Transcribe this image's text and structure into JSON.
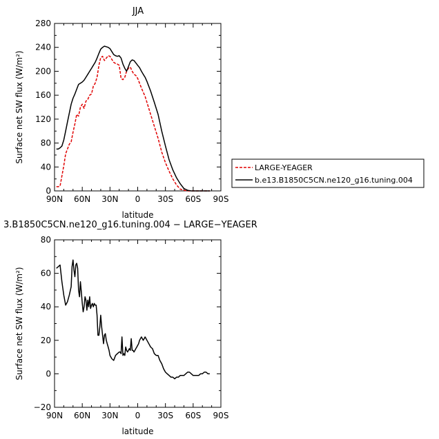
{
  "chart_data": [
    {
      "type": "line",
      "title": "JJA",
      "xlabel": "latitude",
      "ylabel": "Surface net SW flux (W/m²)",
      "xlim": [
        90,
        -90
      ],
      "ylim": [
        0,
        280
      ],
      "xticks": [
        90,
        60,
        30,
        0,
        -30,
        -60,
        -90
      ],
      "xtick_labels": [
        "90N",
        "60N",
        "30N",
        "0",
        "30S",
        "60S",
        "90S"
      ],
      "yticks": [
        0,
        40,
        80,
        120,
        160,
        200,
        240,
        280
      ],
      "ytick_labels": [
        "0",
        "40",
        "80",
        "120",
        "160",
        "200",
        "240",
        "280"
      ],
      "legend_position": "right",
      "series": [
        {
          "name": "LARGE-YEAGER",
          "color": "#e00000",
          "dash": "dashed",
          "x": [
            88,
            86,
            84,
            82,
            80,
            78,
            76,
            74,
            72,
            70,
            68,
            66,
            64,
            62,
            60,
            58,
            56,
            54,
            52,
            50,
            48,
            46,
            44,
            42,
            40,
            38,
            36,
            34,
            32,
            30,
            28,
            26,
            24,
            22,
            20,
            18,
            16,
            14,
            12,
            10,
            8,
            6,
            4,
            2,
            0,
            -2,
            -4,
            -6,
            -8,
            -10,
            -14,
            -18,
            -22,
            -26,
            -30,
            -34,
            -38,
            -42,
            -46,
            -50,
            -54,
            -58,
            -62,
            -66,
            -70,
            -74,
            -78
          ],
          "values": [
            7,
            7,
            8,
            25,
            42,
            62,
            70,
            78,
            82,
            98,
            112,
            128,
            125,
            140,
            145,
            138,
            150,
            153,
            160,
            162,
            175,
            180,
            190,
            210,
            223,
            225,
            218,
            222,
            226,
            225,
            220,
            215,
            213,
            212,
            210,
            188,
            186,
            190,
            200,
            205,
            207,
            200,
            195,
            193,
            188,
            180,
            172,
            165,
            158,
            148,
            128,
            108,
            88,
            65,
            47,
            33,
            20,
            10,
            3,
            1,
            0,
            0,
            0,
            0,
            0,
            0,
            0
          ]
        },
        {
          "name": "b.e13.B1850C5CN.ne120_g16.tuning.004",
          "color": "#000000",
          "dash": "solid",
          "x": [
            88,
            86,
            84,
            82,
            80,
            78,
            76,
            74,
            72,
            70,
            68,
            66,
            64,
            62,
            60,
            58,
            56,
            54,
            52,
            50,
            48,
            46,
            44,
            42,
            40,
            38,
            36,
            34,
            32,
            30,
            28,
            26,
            24,
            22,
            20,
            18,
            16,
            14,
            12,
            10,
            8,
            6,
            4,
            2,
            0,
            -2,
            -4,
            -6,
            -8,
            -10,
            -14,
            -18,
            -22,
            -26,
            -30,
            -34,
            -38,
            -42,
            -46,
            -50,
            -54,
            -58,
            -62,
            -66,
            -70,
            -74,
            -78
          ],
          "values": [
            70,
            70,
            72,
            75,
            85,
            100,
            115,
            130,
            145,
            155,
            162,
            170,
            178,
            180,
            182,
            185,
            190,
            195,
            200,
            205,
            210,
            215,
            222,
            230,
            237,
            240,
            242,
            241,
            240,
            238,
            233,
            228,
            226,
            225,
            226,
            222,
            212,
            205,
            200,
            208,
            216,
            219,
            218,
            214,
            210,
            206,
            200,
            195,
            190,
            183,
            167,
            148,
            128,
            100,
            75,
            52,
            35,
            22,
            12,
            4,
            1,
            0,
            0,
            0,
            0,
            0,
            0
          ]
        }
      ]
    },
    {
      "type": "line",
      "title": "3.B1850C5CN.ne120_g16.tuning.004 − LARGE−YEAGER",
      "xlabel": "latitude",
      "ylabel": "Surface net SW flux (W/m²)",
      "xlim": [
        90,
        -90
      ],
      "ylim": [
        -20,
        80
      ],
      "xticks": [
        90,
        60,
        30,
        0,
        -30,
        -60,
        -90
      ],
      "xtick_labels": [
        "90N",
        "60N",
        "30N",
        "0",
        "30S",
        "60S",
        "90S"
      ],
      "yticks": [
        -20,
        0,
        20,
        40,
        60,
        80
      ],
      "ytick_labels": [
        "−20",
        "0",
        "20",
        "40",
        "60",
        "80"
      ],
      "series": [
        {
          "color": "#000000",
          "dash": "solid",
          "x": [
            88,
            86,
            84,
            82,
            80,
            78,
            76,
            74,
            72,
            71,
            70,
            69,
            68,
            67,
            66,
            65,
            64,
            63,
            62,
            61,
            60,
            59,
            58,
            57,
            56,
            55,
            54,
            53,
            52,
            51,
            50,
            49,
            48,
            47,
            46,
            45,
            44,
            43,
            42,
            41,
            40,
            39,
            38,
            37,
            36,
            35,
            34,
            33,
            32,
            31,
            30,
            28,
            26,
            24,
            22,
            20,
            19,
            18,
            17,
            16,
            15,
            14,
            13,
            12,
            11,
            10,
            9,
            8,
            7,
            6,
            5,
            4,
            3,
            2,
            1,
            0,
            -1,
            -2,
            -3,
            -4,
            -5,
            -6,
            -7,
            -8,
            -9,
            -10,
            -12,
            -14,
            -16,
            -18,
            -20,
            -22,
            -24,
            -26,
            -28,
            -30,
            -32,
            -34,
            -36,
            -38,
            -40,
            -42,
            -44,
            -46,
            -48,
            -50,
            -52,
            -54,
            -56,
            -58,
            -60,
            -62,
            -64,
            -66,
            -68,
            -70,
            -72,
            -74,
            -76,
            -78
          ],
          "values": [
            63,
            64,
            65,
            55,
            47,
            41,
            43,
            47,
            52,
            64,
            68,
            62,
            58,
            65,
            66,
            63,
            50,
            46,
            55,
            49,
            42,
            37,
            40,
            46,
            44,
            38,
            44,
            40,
            46,
            39,
            41,
            42,
            40,
            42,
            41,
            41,
            35,
            23,
            23,
            28,
            35,
            28,
            23,
            18,
            23,
            24,
            20,
            18,
            16,
            14,
            11,
            9,
            8,
            11,
            12,
            13,
            13,
            12,
            22,
            11,
            12,
            11,
            16,
            14,
            13,
            14,
            15,
            14,
            21,
            14,
            14,
            13,
            14,
            15,
            16,
            17,
            18,
            20,
            21,
            22,
            21,
            20,
            21,
            22,
            21,
            20,
            18,
            16,
            15,
            12,
            11,
            11,
            8,
            6,
            3,
            1,
            0,
            -1,
            -2,
            -2,
            -3,
            -2,
            -2,
            -1,
            -1,
            -1,
            0,
            1,
            1,
            0,
            -1,
            -1,
            -1,
            -1,
            0,
            0,
            1,
            1,
            0,
            0
          ]
        }
      ]
    }
  ]
}
